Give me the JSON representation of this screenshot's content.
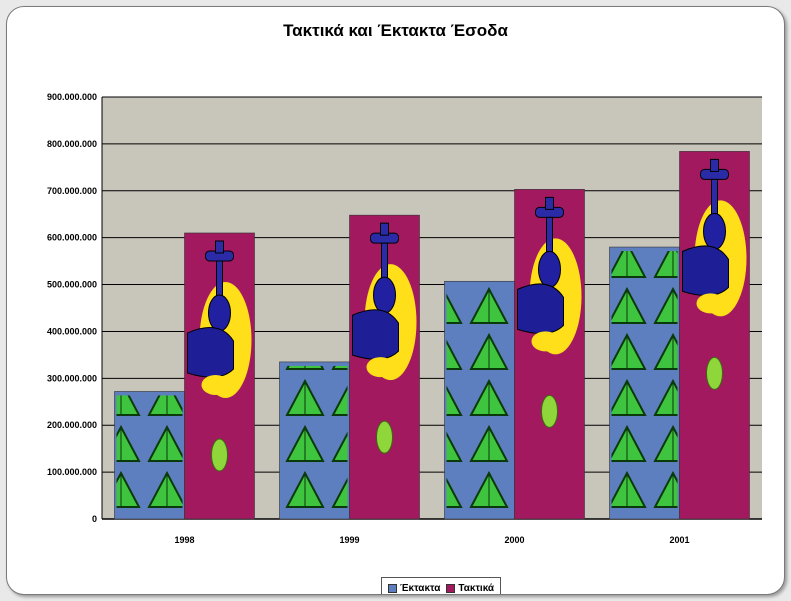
{
  "chart_data": {
    "type": "bar",
    "title": "Τακτικά και Έκτακτα Έσοδα",
    "categories": [
      "1998",
      "1999",
      "2000",
      "2001"
    ],
    "series": [
      {
        "name": "Έκτακτα",
        "values": [
          272000000,
          335000000,
          507000000,
          580000000
        ]
      },
      {
        "name": "Τακτικά",
        "values": [
          610000000,
          648000000,
          703000000,
          784000000
        ]
      }
    ],
    "y_ticks": [
      "0",
      "100.000.000",
      "200.000.000",
      "300.000.000",
      "400.000.000",
      "500.000.000",
      "600.000.000",
      "700.000.000",
      "800.000.000",
      "900.000.000"
    ],
    "ylim": [
      0,
      900000000
    ],
    "grid": true,
    "legend_position": "bottom",
    "colors": {
      "ektakta": "#5d7fbf",
      "taktika": "#a31960",
      "plot_bg": "#c8c5bb"
    }
  }
}
